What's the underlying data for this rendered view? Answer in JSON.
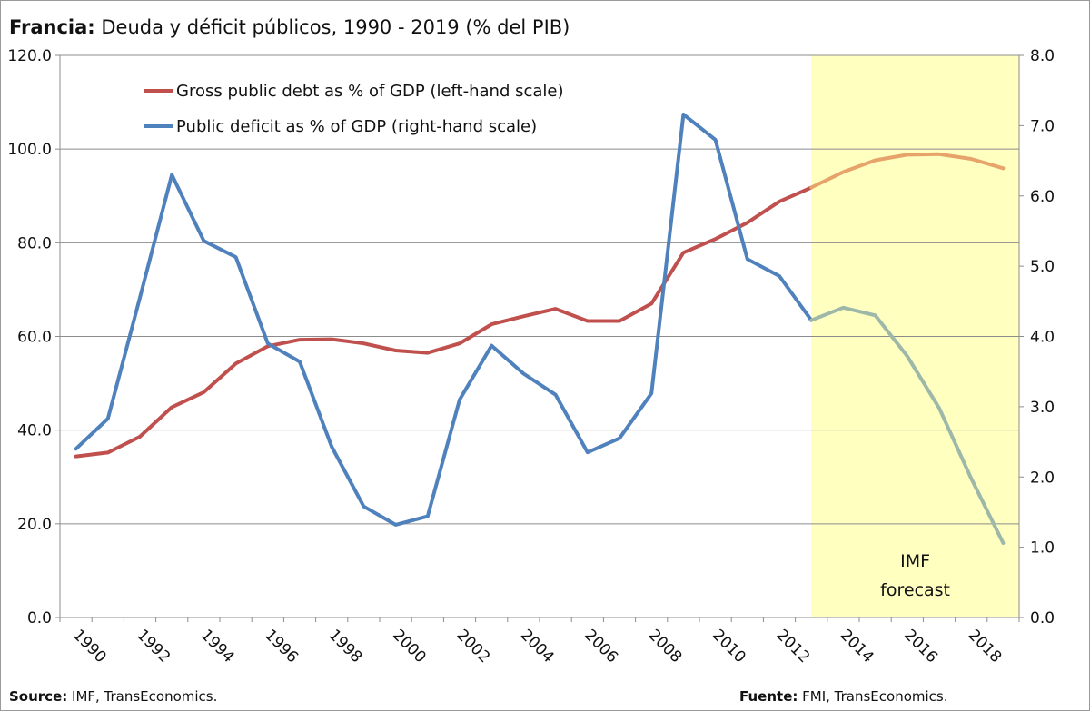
{
  "title": {
    "bold": "Francia:",
    "rest": " Deuda y déficit públicos, 1990 - 2019 (% del PIB)"
  },
  "footer": {
    "source_label": "Source:",
    "source_text": " IMF, TransEconomics.",
    "fuente_label": "Fuente:",
    "fuente_text": " FMI, TransEconomics."
  },
  "colors": {
    "debt": "#c0504d",
    "debt_forecast": "#e6a46b",
    "deficit": "#4f81bd",
    "deficit_forecast": "#9db8a8",
    "forecast_band": "#ffffc0",
    "grid": "#8c8c8c"
  },
  "chart_data": {
    "type": "line",
    "x": [
      1990,
      1991,
      1992,
      1993,
      1994,
      1995,
      1996,
      1997,
      1998,
      1999,
      2000,
      2001,
      2002,
      2003,
      2004,
      2005,
      2006,
      2007,
      2008,
      2009,
      2010,
      2011,
      2012,
      2013,
      2014,
      2015,
      2016,
      2017,
      2018,
      2019
    ],
    "x_tick_labels": [
      "1990",
      "1992",
      "1994",
      "1996",
      "1998",
      "2000",
      "2002",
      "2004",
      "2006",
      "2008",
      "2010",
      "2012",
      "2014",
      "2016",
      "2018"
    ],
    "forecast_start": 2013,
    "series": [
      {
        "name": "Gross public debt as % of GDP (left-hand scale)",
        "axis": "left",
        "values": [
          34.4,
          35.2,
          38.6,
          44.9,
          48.1,
          54.2,
          57.9,
          59.3,
          59.4,
          58.5,
          57.0,
          56.5,
          58.5,
          62.6,
          64.3,
          65.9,
          63.3,
          63.3,
          67.0,
          77.9,
          80.8,
          84.3,
          88.8,
          91.8,
          95.1,
          97.6,
          98.8,
          98.9,
          97.9,
          95.9
        ]
      },
      {
        "name": "Public deficit as % of GDP (right-hand scale)",
        "axis": "right",
        "values": [
          2.4,
          2.83,
          4.55,
          6.3,
          5.36,
          5.13,
          3.9,
          3.64,
          2.43,
          1.58,
          1.32,
          1.44,
          3.1,
          3.87,
          3.47,
          3.17,
          2.35,
          2.55,
          3.19,
          7.16,
          6.8,
          5.1,
          4.86,
          4.23,
          4.41,
          4.3,
          3.72,
          2.98,
          1.98,
          1.06
        ]
      }
    ],
    "y_left": {
      "ylim": [
        0,
        120
      ],
      "ticks": [
        "0.0",
        "20.0",
        "40.0",
        "60.0",
        "80.0",
        "100.0",
        "120.0"
      ]
    },
    "y_right": {
      "ylim": [
        0,
        8
      ],
      "ticks": [
        "0.0",
        "1.0",
        "2.0",
        "3.0",
        "4.0",
        "5.0",
        "6.0",
        "7.0",
        "8.0"
      ]
    },
    "grid": "horizontal",
    "legend": "top-left",
    "annotation": {
      "line1": "IMF",
      "line2": "forecast"
    }
  }
}
